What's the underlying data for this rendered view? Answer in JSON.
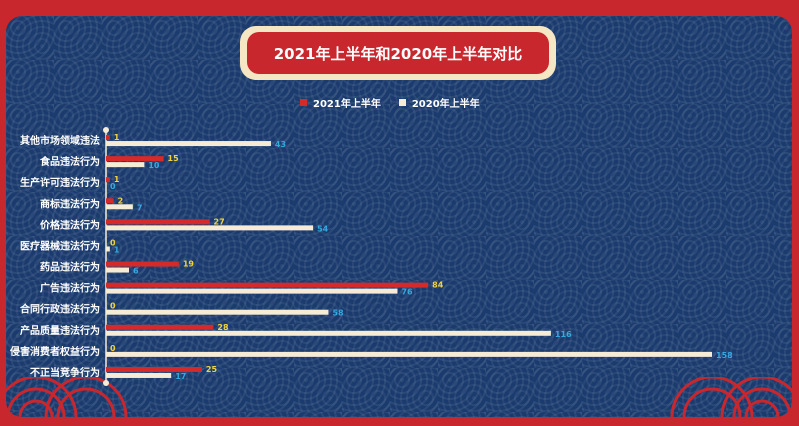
{
  "colors": {
    "y2021": "#d42a2a",
    "y2020": "#f6ecd6",
    "label2021": "#f2d43a",
    "label2020": "#35a8e0",
    "category": "#ffffff"
  },
  "chart_data": {
    "type": "bar",
    "orientation": "horizontal",
    "title": "2021年上半年和2020年上半年对比",
    "categories": [
      "其他市场领域违法",
      "食品违法行为",
      "生产许可违法行为",
      "商标违法行为",
      "价格违法行为",
      "医疗器械违法行为",
      "药品违法行为",
      "广告违法行为",
      "合同行政违法行为",
      "产品质量违法行为",
      "侵害消费者权益行为",
      "不正当竞争行为"
    ],
    "series": [
      {
        "name": "2021年上半年",
        "values": [
          1,
          15,
          1,
          2,
          27,
          0,
          19,
          84,
          0,
          28,
          0,
          25
        ]
      },
      {
        "name": "2020年上半年",
        "values": [
          43,
          10,
          0,
          7,
          54,
          1,
          6,
          76,
          58,
          116,
          158,
          17
        ]
      }
    ],
    "xlim": [
      0,
      158
    ],
    "legend_position": "top-center",
    "grid": false
  }
}
